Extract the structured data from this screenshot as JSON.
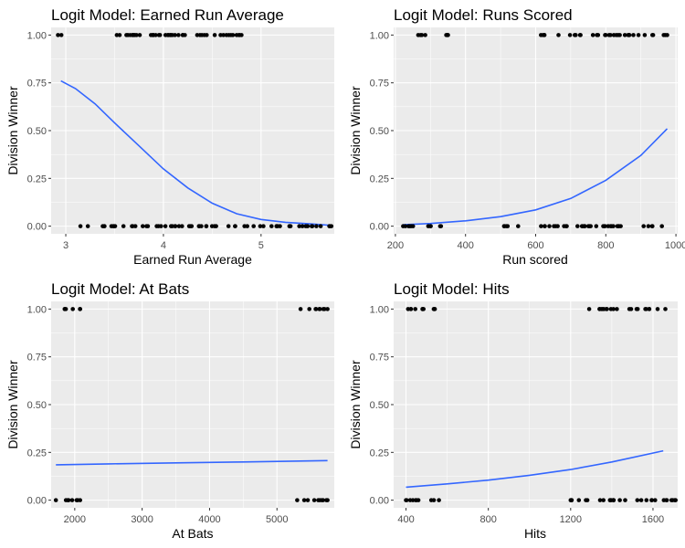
{
  "figure": {
    "background": "#ffffff",
    "panel_background": "#ebebeb",
    "grid_color": "#ffffff",
    "point_color": "#000000",
    "line_color": "#3366ff"
  },
  "chart_data": [
    {
      "type": "scatter",
      "title": "Logit Model: Earned Run Average",
      "xlabel": "Earned Run Average",
      "ylabel": "Division Winner",
      "xlim": [
        2.85,
        5.75
      ],
      "ylim": [
        -0.04,
        1.04
      ],
      "xticks": [
        3,
        4,
        5
      ],
      "xtick_labels": [
        "3",
        "4",
        "5"
      ],
      "yticks": [
        0,
        0.25,
        0.5,
        0.75,
        1
      ],
      "ytick_labels": [
        "0.00",
        "0.25",
        "0.50",
        "0.75",
        "1.00"
      ],
      "points": [
        {
          "y": 1,
          "x_range": [
            2.92,
            4.8
          ],
          "x_start": 3.62
        },
        {
          "y": 0,
          "x_range": [
            3.15,
            5.72
          ],
          "x_start": 3.3
        }
      ],
      "fit_line": [
        [
          2.95,
          0.76
        ],
        [
          3.1,
          0.72
        ],
        [
          3.3,
          0.64
        ],
        [
          3.5,
          0.54
        ],
        [
          3.75,
          0.42
        ],
        [
          4.0,
          0.3
        ],
        [
          4.25,
          0.2
        ],
        [
          4.5,
          0.12
        ],
        [
          4.75,
          0.065
        ],
        [
          5.0,
          0.035
        ],
        [
          5.25,
          0.02
        ],
        [
          5.5,
          0.012
        ],
        [
          5.72,
          0.004
        ]
      ]
    },
    {
      "type": "scatter",
      "title": "Logit Model: Runs Scored",
      "xlabel": "Run scored",
      "ylabel": "Division Winner",
      "xlim": [
        195,
        1005
      ],
      "ylim": [
        -0.04,
        1.04
      ],
      "xticks": [
        200,
        400,
        600,
        800,
        1000
      ],
      "xtick_labels": [
        "200",
        "400",
        "600",
        "800",
        "1000"
      ],
      "yticks": [
        0,
        0.25,
        0.5,
        0.75,
        1
      ],
      "ytick_labels": [
        "0.00",
        "0.25",
        "0.50",
        "0.75",
        "1.00"
      ],
      "points": [
        {
          "y": 1,
          "x_range": [
            265,
            285
          ],
          "x_start": 0
        },
        {
          "y": 1,
          "x_range": [
            345,
            350
          ],
          "x_start": 0
        },
        {
          "y": 1,
          "x_range": [
            615,
            625
          ],
          "x_start": 0
        },
        {
          "y": 1,
          "x_range": [
            665,
            975
          ],
          "x_start": 695
        },
        {
          "y": 0,
          "x_range": [
            222,
            330
          ],
          "x_start": 0
        },
        {
          "y": 0,
          "x_range": [
            510,
            520
          ],
          "x_start": 0
        },
        {
          "y": 0,
          "x_range": [
            550,
            960
          ],
          "x_start": 580
        }
      ],
      "fit_line": [
        [
          222,
          0.008
        ],
        [
          300,
          0.014
        ],
        [
          400,
          0.028
        ],
        [
          500,
          0.05
        ],
        [
          600,
          0.085
        ],
        [
          700,
          0.145
        ],
        [
          800,
          0.24
        ],
        [
          900,
          0.37
        ],
        [
          975,
          0.51
        ]
      ]
    },
    {
      "type": "scatter",
      "title": "Logit Model: At Bats",
      "xlabel": "At Bats",
      "ylabel": "Division Winner",
      "xlim": [
        1650,
        5850
      ],
      "ylim": [
        -0.04,
        1.04
      ],
      "xticks": [
        2000,
        3000,
        4000,
        5000
      ],
      "xtick_labels": [
        "2000",
        "3000",
        "4000",
        "5000"
      ],
      "yticks": [
        0,
        0.25,
        0.5,
        0.75,
        1
      ],
      "ytick_labels": [
        "0.00",
        "0.25",
        "0.50",
        "0.75",
        "1.00"
      ],
      "points": [
        {
          "y": 1,
          "x_range": [
            1850,
            2080
          ],
          "x_start": 0
        },
        {
          "y": 1,
          "x_range": [
            5350,
            5750
          ],
          "x_start": 5400
        },
        {
          "y": 0,
          "x_range": [
            1720,
            2080
          ],
          "x_start": 1830
        },
        {
          "y": 0,
          "x_range": [
            5300,
            5750
          ],
          "x_start": 5360
        }
      ],
      "fit_line": [
        [
          1720,
          0.185
        ],
        [
          2500,
          0.19
        ],
        [
          3500,
          0.195
        ],
        [
          4500,
          0.2
        ],
        [
          5750,
          0.207
        ]
      ]
    },
    {
      "type": "scatter",
      "title": "Logit Model: Hits",
      "xlabel": "Hits",
      "ylabel": "Division Winner",
      "xlim": [
        340,
        1720
      ],
      "ylim": [
        -0.04,
        1.04
      ],
      "xticks": [
        400,
        800,
        1200,
        1600
      ],
      "xtick_labels": [
        "400",
        "800",
        "1200",
        "1600"
      ],
      "yticks": [
        0,
        0.25,
        0.5,
        0.75,
        1
      ],
      "ytick_labels": [
        "0.00",
        "0.25",
        "0.50",
        "0.75",
        "1.00"
      ],
      "points": [
        {
          "y": 1,
          "x_range": [
            410,
            445
          ],
          "x_start": 0
        },
        {
          "y": 1,
          "x_range": [
            480,
            485
          ],
          "x_start": 0
        },
        {
          "y": 1,
          "x_range": [
            535,
            540
          ],
          "x_start": 0
        },
        {
          "y": 1,
          "x_range": [
            1290,
            1660
          ],
          "x_start": 1340
        },
        {
          "y": 0,
          "x_range": [
            400,
            560
          ],
          "x_start": 0
        },
        {
          "y": 0,
          "x_range": [
            1200,
            1205
          ],
          "x_start": 0
        },
        {
          "y": 0,
          "x_range": [
            1240,
            1710
          ],
          "x_start": 1270
        }
      ],
      "fit_line": [
        [
          400,
          0.068
        ],
        [
          600,
          0.085
        ],
        [
          800,
          0.105
        ],
        [
          1000,
          0.13
        ],
        [
          1200,
          0.16
        ],
        [
          1400,
          0.2
        ],
        [
          1650,
          0.258
        ]
      ]
    }
  ]
}
